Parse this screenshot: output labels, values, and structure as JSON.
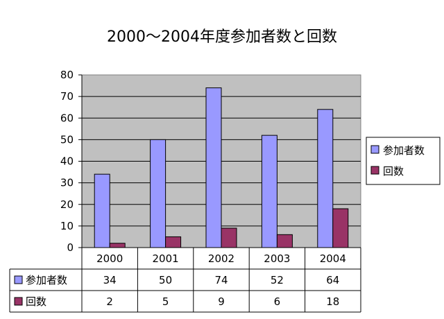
{
  "chart_data": {
    "type": "bar",
    "title": "2000～2004年度参加者数と回数",
    "categories": [
      "2000",
      "2001",
      "2002",
      "2003",
      "2004"
    ],
    "series": [
      {
        "name": "参加者数",
        "values": [
          34,
          50,
          74,
          52,
          64
        ],
        "color": "#9999ff"
      },
      {
        "name": "回数",
        "values": [
          2,
          5,
          9,
          6,
          18
        ],
        "color": "#993366"
      }
    ],
    "yticks": [
      "0",
      "10",
      "20",
      "30",
      "40",
      "50",
      "60",
      "70",
      "80"
    ],
    "ylim": [
      0,
      80
    ],
    "grid": true,
    "legend_position": "right",
    "data_table": true,
    "plot_background": "#c0c0c0"
  }
}
